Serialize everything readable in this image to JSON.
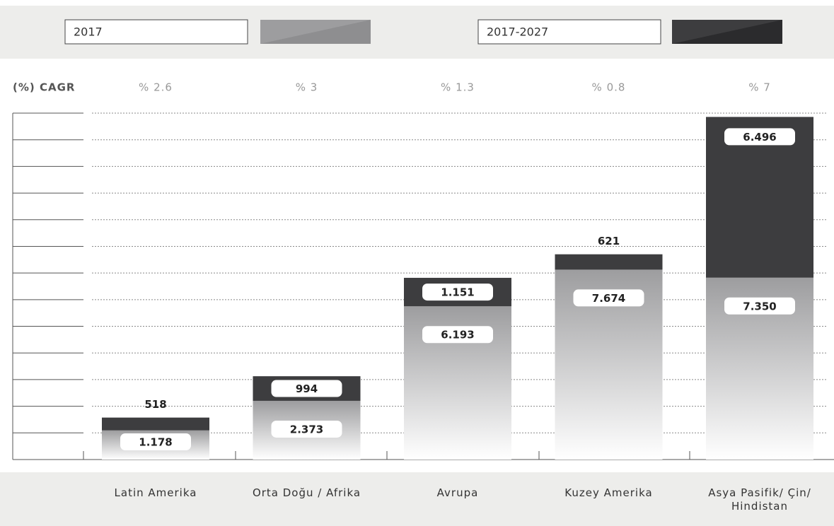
{
  "chart_data": {
    "type": "stacked_bar",
    "categories": [
      "Latin Amerika",
      "Orta Doğu / Afrika",
      "Avrupa",
      "Kuzey Amerika",
      "Asya Pasifik/ Çin/ Hindistan"
    ],
    "series": [
      {
        "name": "2017",
        "color": "#9d9d9f",
        "values": [
          1178,
          2373,
          6193,
          7674,
          7350
        ],
        "value_labels": [
          "1.178",
          "2.373",
          "6.193",
          "7.674",
          "7.350"
        ]
      },
      {
        "name": "2017-2027",
        "color": "#3d3d3f",
        "values": [
          518,
          994,
          1151,
          621,
          6496
        ],
        "value_labels": [
          "518",
          "994",
          "1.151",
          "621",
          "6.496"
        ]
      }
    ],
    "annotation_title": "(%) CAGR",
    "annotations": [
      "% 2.6",
      "% 3",
      "% 1.3",
      "% 0.8",
      "% 7"
    ],
    "ylim": [
      0,
      14000
    ]
  }
}
